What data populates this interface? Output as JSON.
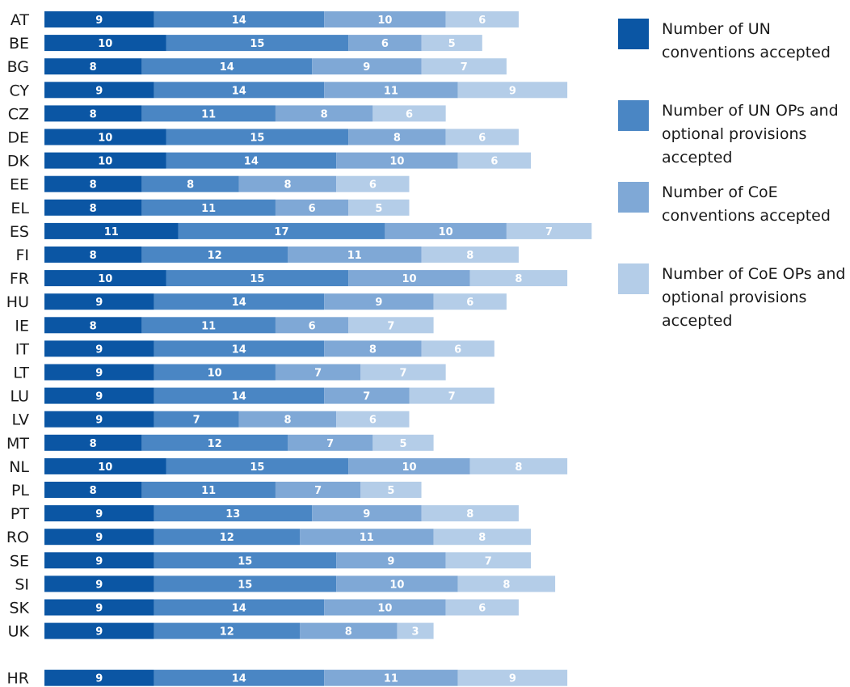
{
  "chart_data": {
    "type": "bar",
    "orientation": "horizontal",
    "stacked": true,
    "categories": [
      "AT",
      "BE",
      "BG",
      "CY",
      "CZ",
      "DE",
      "DK",
      "EE",
      "EL",
      "ES",
      "FI",
      "FR",
      "HU",
      "IE",
      "IT",
      "LT",
      "LU",
      "LV",
      "MT",
      "NL",
      "PL",
      "PT",
      "RO",
      "SE",
      "SI",
      "SK",
      "UK",
      "HR"
    ],
    "series": [
      {
        "name": "Number of UN conventions accepted",
        "color": "#0b56a4",
        "values": [
          9,
          10,
          8,
          9,
          8,
          10,
          10,
          8,
          8,
          11,
          8,
          10,
          9,
          8,
          9,
          9,
          9,
          9,
          8,
          10,
          8,
          9,
          9,
          9,
          9,
          9,
          9,
          9
        ]
      },
      {
        "name": "Number of UN OPs and optional provisions accepted",
        "color": "#4a86c4",
        "values": [
          14,
          15,
          14,
          14,
          11,
          15,
          14,
          8,
          11,
          17,
          12,
          15,
          14,
          11,
          14,
          10,
          14,
          7,
          12,
          15,
          11,
          13,
          12,
          15,
          15,
          14,
          12,
          14
        ]
      },
      {
        "name": "Number of CoE conventions accepted",
        "color": "#7fa8d6",
        "values": [
          10,
          6,
          9,
          11,
          8,
          8,
          10,
          8,
          6,
          10,
          11,
          10,
          9,
          6,
          8,
          7,
          7,
          8,
          7,
          10,
          7,
          9,
          11,
          9,
          10,
          10,
          8,
          11
        ]
      },
      {
        "name": "Number of CoE OPs and optional provisions accepted",
        "color": "#b4cde8",
        "values": [
          6,
          5,
          7,
          9,
          6,
          6,
          6,
          6,
          5,
          7,
          8,
          8,
          6,
          7,
          6,
          7,
          7,
          6,
          5,
          8,
          5,
          8,
          8,
          7,
          8,
          6,
          3,
          9
        ]
      }
    ],
    "legend_position": "right",
    "grid": false
  }
}
